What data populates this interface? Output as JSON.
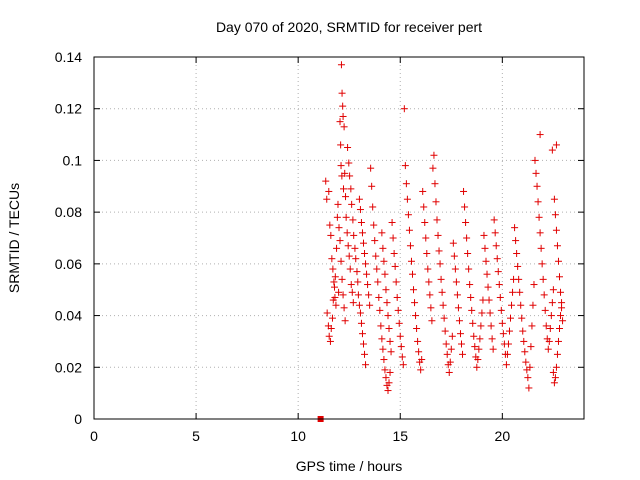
{
  "chart_data": {
    "type": "scatter",
    "title": "Day 070 of 2020, SRMTID for receiver pert",
    "xlabel": "GPS time / hours",
    "ylabel": "SRMTID / TECUs",
    "xlim": [
      0,
      24
    ],
    "ylim": [
      0,
      0.14
    ],
    "xticks": [
      "0",
      "5",
      "10",
      "15",
      "20"
    ],
    "yticks": [
      "0",
      "0.02",
      "0.04",
      "0.06",
      "0.08",
      "0.1",
      "0.12",
      "0.14"
    ],
    "grid": true,
    "marker": "plus",
    "marker_color": "#e00000",
    "zero_marker": {
      "x": 11.1,
      "y": 0
    },
    "series": [
      {
        "points": [
          [
            11.35,
            0.092
          ],
          [
            11.4,
            0.085
          ],
          [
            11.5,
            0.088
          ],
          [
            11.55,
            0.075
          ],
          [
            11.6,
            0.071
          ],
          [
            11.65,
            0.062
          ],
          [
            11.7,
            0.058
          ],
          [
            11.75,
            0.053
          ],
          [
            11.8,
            0.047
          ],
          [
            11.85,
            0.044
          ],
          [
            11.42,
            0.041
          ],
          [
            11.48,
            0.036
          ],
          [
            11.52,
            0.032
          ],
          [
            11.58,
            0.03
          ],
          [
            11.62,
            0.035
          ],
          [
            11.68,
            0.039
          ],
          [
            11.72,
            0.046
          ],
          [
            11.78,
            0.051
          ],
          [
            11.82,
            0.055
          ],
          [
            11.88,
            0.066
          ],
          [
            11.92,
            0.078
          ],
          [
            11.95,
            0.083
          ],
          [
            12.0,
            0.074
          ],
          [
            12.05,
            0.069
          ],
          [
            12.1,
            0.061
          ],
          [
            12.15,
            0.054
          ],
          [
            12.2,
            0.048
          ],
          [
            12.25,
            0.043
          ],
          [
            12.3,
            0.038
          ],
          [
            11.98,
            0.049
          ],
          [
            12.05,
            0.115
          ],
          [
            12.12,
            0.137
          ],
          [
            12.15,
            0.126
          ],
          [
            12.18,
            0.121
          ],
          [
            12.2,
            0.117
          ],
          [
            12.25,
            0.113
          ],
          [
            12.08,
            0.106
          ],
          [
            12.1,
            0.098
          ],
          [
            12.14,
            0.094
          ],
          [
            12.22,
            0.089
          ],
          [
            12.28,
            0.095
          ],
          [
            12.32,
            0.086
          ],
          [
            12.35,
            0.078
          ],
          [
            12.4,
            0.072
          ],
          [
            12.45,
            0.067
          ],
          [
            12.5,
            0.063
          ],
          [
            12.55,
            0.058
          ],
          [
            12.6,
            0.052
          ],
          [
            12.65,
            0.049
          ],
          [
            12.7,
            0.045
          ],
          [
            12.42,
            0.105
          ],
          [
            12.48,
            0.099
          ],
          [
            12.52,
            0.094
          ],
          [
            12.58,
            0.089
          ],
          [
            12.62,
            0.083
          ],
          [
            12.68,
            0.077
          ],
          [
            12.72,
            0.071
          ],
          [
            12.78,
            0.066
          ],
          [
            12.82,
            0.062
          ],
          [
            12.88,
            0.057
          ],
          [
            12.92,
            0.053
          ],
          [
            12.95,
            0.048
          ],
          [
            13.0,
            0.044
          ],
          [
            13.05,
            0.041
          ],
          [
            13.1,
            0.037
          ],
          [
            13.15,
            0.033
          ],
          [
            13.2,
            0.029
          ],
          [
            13.25,
            0.025
          ],
          [
            13.3,
            0.021
          ],
          [
            13.0,
            0.085
          ],
          [
            13.05,
            0.081
          ],
          [
            13.1,
            0.076
          ],
          [
            13.15,
            0.072
          ],
          [
            13.2,
            0.068
          ],
          [
            13.25,
            0.064
          ],
          [
            13.3,
            0.06
          ],
          [
            13.35,
            0.056
          ],
          [
            13.4,
            0.052
          ],
          [
            13.45,
            0.048
          ],
          [
            13.5,
            0.044
          ],
          [
            13.55,
            0.097
          ],
          [
            13.6,
            0.09
          ],
          [
            13.65,
            0.082
          ],
          [
            13.7,
            0.075
          ],
          [
            13.75,
            0.069
          ],
          [
            13.8,
            0.063
          ],
          [
            13.85,
            0.058
          ],
          [
            13.9,
            0.053
          ],
          [
            13.95,
            0.047
          ],
          [
            14.0,
            0.042
          ],
          [
            14.05,
            0.036
          ],
          [
            14.1,
            0.031
          ],
          [
            14.15,
            0.027
          ],
          [
            14.2,
            0.023
          ],
          [
            14.25,
            0.019
          ],
          [
            14.3,
            0.016
          ],
          [
            14.35,
            0.013
          ],
          [
            14.4,
            0.011
          ],
          [
            14.45,
            0.014
          ],
          [
            14.5,
            0.018
          ],
          [
            14.1,
            0.072
          ],
          [
            14.15,
            0.066
          ],
          [
            14.2,
            0.061
          ],
          [
            14.25,
            0.056
          ],
          [
            14.3,
            0.05
          ],
          [
            14.35,
            0.045
          ],
          [
            14.4,
            0.04
          ],
          [
            14.45,
            0.035
          ],
          [
            14.5,
            0.03
          ],
          [
            14.55,
            0.026
          ],
          [
            14.6,
            0.076
          ],
          [
            14.65,
            0.07
          ],
          [
            14.7,
            0.064
          ],
          [
            14.75,
            0.059
          ],
          [
            14.8,
            0.053
          ],
          [
            14.85,
            0.047
          ],
          [
            14.9,
            0.042
          ],
          [
            14.95,
            0.037
          ],
          [
            15.0,
            0.032
          ],
          [
            15.05,
            0.028
          ],
          [
            15.1,
            0.024
          ],
          [
            15.15,
            0.021
          ],
          [
            15.2,
            0.12
          ],
          [
            15.25,
            0.098
          ],
          [
            15.3,
            0.091
          ],
          [
            15.35,
            0.085
          ],
          [
            15.4,
            0.079
          ],
          [
            15.45,
            0.073
          ],
          [
            15.5,
            0.067
          ],
          [
            15.55,
            0.061
          ],
          [
            15.6,
            0.056
          ],
          [
            15.65,
            0.05
          ],
          [
            15.7,
            0.045
          ],
          [
            15.75,
            0.04
          ],
          [
            15.8,
            0.035
          ],
          [
            15.85,
            0.03
          ],
          [
            15.9,
            0.026
          ],
          [
            15.95,
            0.022
          ],
          [
            16.0,
            0.019
          ],
          [
            16.05,
            0.023
          ],
          [
            16.1,
            0.088
          ],
          [
            16.15,
            0.082
          ],
          [
            16.2,
            0.076
          ],
          [
            16.25,
            0.07
          ],
          [
            16.3,
            0.064
          ],
          [
            16.35,
            0.058
          ],
          [
            16.4,
            0.053
          ],
          [
            16.45,
            0.048
          ],
          [
            16.5,
            0.043
          ],
          [
            16.55,
            0.038
          ],
          [
            16.6,
            0.097
          ],
          [
            16.65,
            0.102
          ],
          [
            16.7,
            0.091
          ],
          [
            16.75,
            0.084
          ],
          [
            16.8,
            0.077
          ],
          [
            16.85,
            0.071
          ],
          [
            16.9,
            0.065
          ],
          [
            16.95,
            0.06
          ],
          [
            17.0,
            0.054
          ],
          [
            17.05,
            0.049
          ],
          [
            17.1,
            0.044
          ],
          [
            17.15,
            0.039
          ],
          [
            17.2,
            0.034
          ],
          [
            17.25,
            0.029
          ],
          [
            17.3,
            0.025
          ],
          [
            17.35,
            0.021
          ],
          [
            17.4,
            0.018
          ],
          [
            17.45,
            0.022
          ],
          [
            17.5,
            0.027
          ],
          [
            17.55,
            0.032
          ],
          [
            17.6,
            0.068
          ],
          [
            17.65,
            0.063
          ],
          [
            17.7,
            0.058
          ],
          [
            17.75,
            0.053
          ],
          [
            17.8,
            0.048
          ],
          [
            17.85,
            0.043
          ],
          [
            17.9,
            0.038
          ],
          [
            17.95,
            0.033
          ],
          [
            18.0,
            0.029
          ],
          [
            18.05,
            0.025
          ],
          [
            18.1,
            0.088
          ],
          [
            18.15,
            0.082
          ],
          [
            18.2,
            0.076
          ],
          [
            18.25,
            0.07
          ],
          [
            18.3,
            0.064
          ],
          [
            18.35,
            0.058
          ],
          [
            18.4,
            0.052
          ],
          [
            18.45,
            0.047
          ],
          [
            18.5,
            0.042
          ],
          [
            18.55,
            0.037
          ],
          [
            18.6,
            0.032
          ],
          [
            18.65,
            0.028
          ],
          [
            18.7,
            0.024
          ],
          [
            18.75,
            0.02
          ],
          [
            18.8,
            0.023
          ],
          [
            18.85,
            0.027
          ],
          [
            18.9,
            0.031
          ],
          [
            18.95,
            0.036
          ],
          [
            19.0,
            0.041
          ],
          [
            19.05,
            0.046
          ],
          [
            19.1,
            0.071
          ],
          [
            19.15,
            0.066
          ],
          [
            19.2,
            0.061
          ],
          [
            19.25,
            0.056
          ],
          [
            19.3,
            0.051
          ],
          [
            19.35,
            0.046
          ],
          [
            19.4,
            0.041
          ],
          [
            19.45,
            0.036
          ],
          [
            19.5,
            0.031
          ],
          [
            19.55,
            0.027
          ],
          [
            19.6,
            0.077
          ],
          [
            19.65,
            0.072
          ],
          [
            19.7,
            0.067
          ],
          [
            19.75,
            0.062
          ],
          [
            19.8,
            0.057
          ],
          [
            19.85,
            0.052
          ],
          [
            19.9,
            0.047
          ],
          [
            19.95,
            0.042
          ],
          [
            20.0,
            0.037
          ],
          [
            20.05,
            0.033
          ],
          [
            20.1,
            0.029
          ],
          [
            20.15,
            0.025
          ],
          [
            20.2,
            0.021
          ],
          [
            20.25,
            0.025
          ],
          [
            20.3,
            0.029
          ],
          [
            20.35,
            0.034
          ],
          [
            20.4,
            0.039
          ],
          [
            20.45,
            0.044
          ],
          [
            20.5,
            0.049
          ],
          [
            20.55,
            0.054
          ],
          [
            20.6,
            0.074
          ],
          [
            20.65,
            0.069
          ],
          [
            20.7,
            0.064
          ],
          [
            20.75,
            0.059
          ],
          [
            20.8,
            0.054
          ],
          [
            20.85,
            0.049
          ],
          [
            20.9,
            0.044
          ],
          [
            20.95,
            0.039
          ],
          [
            21.0,
            0.034
          ],
          [
            21.05,
            0.03
          ],
          [
            21.1,
            0.026
          ],
          [
            21.15,
            0.022
          ],
          [
            21.2,
            0.019
          ],
          [
            21.25,
            0.016
          ],
          [
            21.3,
            0.012
          ],
          [
            21.35,
            0.02
          ],
          [
            21.4,
            0.028
          ],
          [
            21.45,
            0.036
          ],
          [
            21.5,
            0.044
          ],
          [
            21.55,
            0.052
          ],
          [
            21.6,
            0.1
          ],
          [
            21.65,
            0.095
          ],
          [
            21.7,
            0.09
          ],
          [
            21.75,
            0.084
          ],
          [
            21.8,
            0.078
          ],
          [
            21.85,
            0.072
          ],
          [
            21.9,
            0.066
          ],
          [
            21.95,
            0.06
          ],
          [
            22.0,
            0.054
          ],
          [
            22.05,
            0.048
          ],
          [
            21.85,
            0.11
          ],
          [
            22.1,
            0.042
          ],
          [
            22.15,
            0.036
          ],
          [
            22.2,
            0.031
          ],
          [
            22.25,
            0.027
          ],
          [
            22.3,
            0.03
          ],
          [
            22.35,
            0.035
          ],
          [
            22.4,
            0.04
          ],
          [
            22.45,
            0.045
          ],
          [
            22.5,
            0.05
          ],
          [
            22.45,
            0.104
          ],
          [
            22.65,
            0.106
          ],
          [
            22.55,
            0.085
          ],
          [
            22.6,
            0.079
          ],
          [
            22.65,
            0.073
          ],
          [
            22.7,
            0.067
          ],
          [
            22.75,
            0.061
          ],
          [
            22.8,
            0.055
          ],
          [
            22.85,
            0.049
          ],
          [
            22.9,
            0.043
          ],
          [
            22.6,
            0.016
          ],
          [
            22.65,
            0.02
          ],
          [
            22.7,
            0.025
          ],
          [
            22.75,
            0.03
          ],
          [
            22.8,
            0.035
          ],
          [
            22.85,
            0.04
          ],
          [
            22.9,
            0.045
          ],
          [
            22.95,
            0.038
          ],
          [
            22.55,
            0.014
          ],
          [
            22.5,
            0.018
          ]
        ]
      }
    ]
  }
}
